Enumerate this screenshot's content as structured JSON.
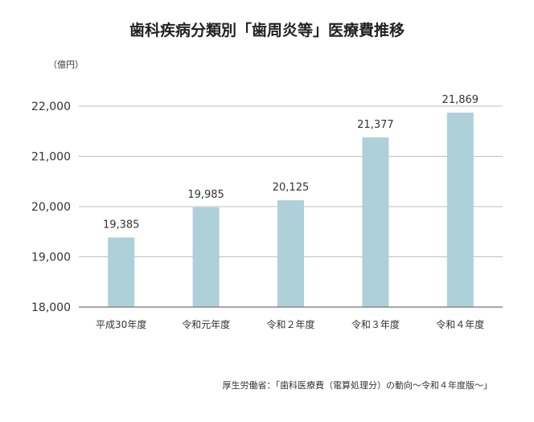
{
  "source": "厚生労働省：「歯科医療費（電算処理分）の動向〜令和４年度版〜」",
  "colors": {
    "bar": "#aed0d9",
    "grid": "#bfbfbf",
    "axis": "#888888",
    "text": "#333333"
  },
  "chart_data": {
    "type": "bar",
    "title": "歯科疾病分類別「歯周炎等」医療費推移",
    "ylabel": "（億円）",
    "xlabel": "",
    "categories": [
      "平成30年度",
      "令和元年度",
      "令和２年度",
      "令和３年度",
      "令和４年度"
    ],
    "values": [
      19385,
      19985,
      20125,
      21377,
      21869
    ],
    "value_labels": [
      "19,385",
      "19,985",
      "20,125",
      "21,377",
      "21,869"
    ],
    "ylim": [
      18000,
      22000
    ],
    "yticks": [
      18000,
      19000,
      20000,
      21000,
      22000
    ],
    "ytick_labels": [
      "18,000",
      "19,000",
      "20,000",
      "21,000",
      "22,000"
    ],
    "grid": true,
    "legend": "none"
  }
}
